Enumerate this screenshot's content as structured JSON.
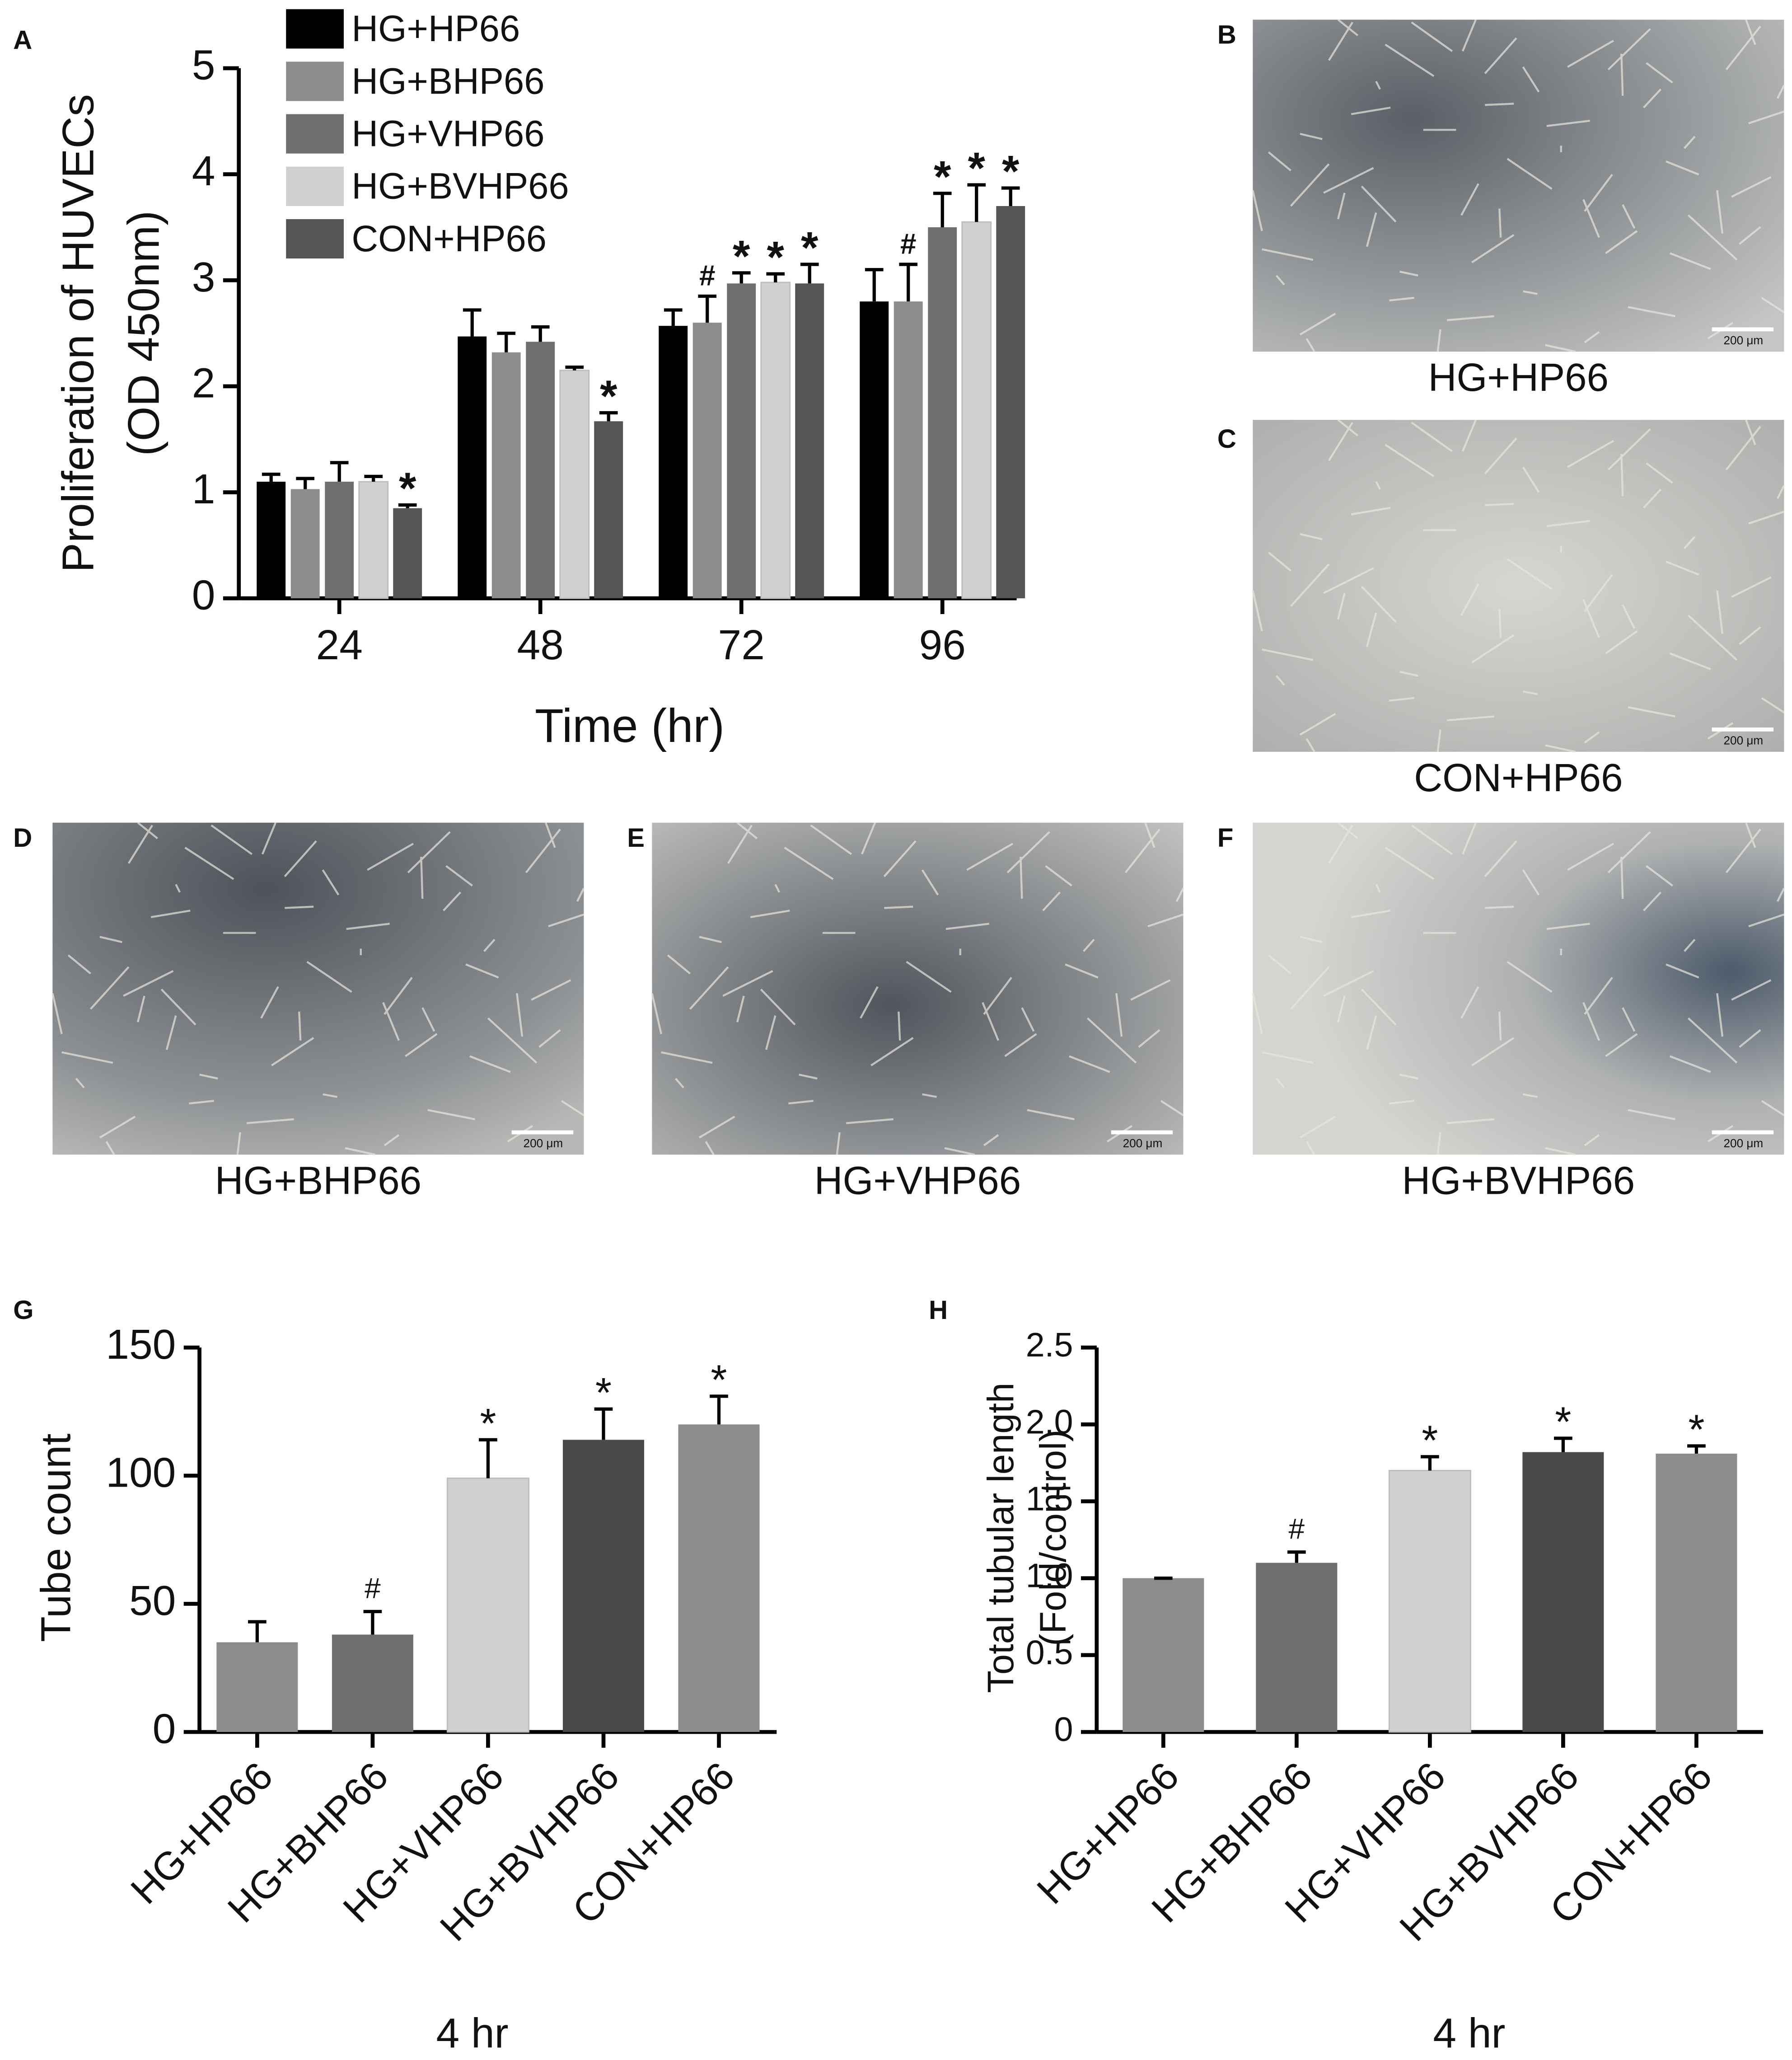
{
  "chart_data": [
    {
      "type": "bar",
      "panel": "A",
      "ylabel": [
        "Proliferation of HUVECs",
        "(OD 450nm)"
      ],
      "xlabel": "Time (hr)",
      "categories": [
        "24",
        "48",
        "72",
        "96"
      ],
      "ylim": [
        0,
        5
      ],
      "yticks": [
        0,
        1,
        2,
        3,
        4,
        5
      ],
      "series": [
        {
          "name": "HG+HP66",
          "color": "#000000",
          "values": [
            1.1,
            2.47,
            2.57,
            2.8
          ],
          "errors": [
            0.07,
            0.25,
            0.15,
            0.3
          ],
          "markers": [
            null,
            null,
            null,
            null
          ]
        },
        {
          "name": "HG+BHP66",
          "color": "#8c8c8c",
          "values": [
            1.03,
            2.32,
            2.6,
            2.8
          ],
          "errors": [
            0.1,
            0.18,
            0.25,
            0.35
          ],
          "markers": [
            null,
            null,
            "#",
            "#"
          ]
        },
        {
          "name": "HG+VHP66",
          "color": "#6e6e6e",
          "values": [
            1.1,
            2.42,
            2.97,
            3.5
          ],
          "errors": [
            0.18,
            0.14,
            0.1,
            0.32
          ],
          "markers": [
            null,
            null,
            "*",
            "*"
          ]
        },
        {
          "name": "HG+BVHP66",
          "color": "#d0d0d0",
          "values": [
            1.1,
            2.15,
            2.98,
            3.55
          ],
          "errors": [
            0.05,
            0.03,
            0.08,
            0.35
          ],
          "markers": [
            null,
            null,
            "*",
            "*"
          ]
        },
        {
          "name": "CON+HP66",
          "color": "#555555",
          "values": [
            0.85,
            1.67,
            2.97,
            3.7
          ],
          "errors": [
            0.03,
            0.08,
            0.18,
            0.17
          ],
          "markers": [
            "*",
            "*",
            "*",
            "*"
          ]
        }
      ]
    },
    {
      "type": "bar",
      "panel": "G",
      "ylabel": [
        "Tube count"
      ],
      "xlabel": "4 hr",
      "categories": [
        "HG+HP66",
        "HG+BHP66",
        "HG+VHP66",
        "HG+BVHP66",
        "CON+HP66"
      ],
      "ylim": [
        0,
        150
      ],
      "yticks": [
        0,
        50,
        100,
        150
      ],
      "values": [
        35,
        38,
        99,
        114,
        120
      ],
      "errors": [
        8,
        9,
        15,
        12,
        11
      ],
      "markers": [
        null,
        "#",
        "*",
        "*",
        "*"
      ],
      "colors": [
        "#8c8c8c",
        "#6e6e6e",
        "#d0d0d0",
        "#4a4a4a",
        "#8c8c8c"
      ]
    },
    {
      "type": "bar",
      "panel": "H",
      "ylabel": [
        "Total tubular length",
        "(Fold/control)"
      ],
      "xlabel": "4 hr",
      "categories": [
        "HG+HP66",
        "HG+BHP66",
        "HG+VHP66",
        "HG+BVHP66",
        "CON+HP66"
      ],
      "ylim": [
        0,
        2.5
      ],
      "yticks": [
        0,
        0.5,
        {
          "value": 1,
          "label": "1.0"
        },
        1.5,
        {
          "value": 2,
          "label": "2.0"
        },
        2.5
      ],
      "values": [
        1.0,
        1.1,
        1.7,
        1.82,
        1.81
      ],
      "errors": [
        0,
        0.07,
        0.09,
        0.09,
        0.05
      ],
      "markers": [
        null,
        "#",
        "*",
        "*",
        "*"
      ],
      "colors": [
        "#8c8c8c",
        "#6e6e6e",
        "#d0d0d0",
        "#4a4a4a",
        "#8c8c8c"
      ]
    }
  ],
  "images": [
    {
      "panel": "B",
      "caption": "HG+HP66",
      "scale": "200 μm"
    },
    {
      "panel": "C",
      "caption": "CON+HP66",
      "scale": "200 μm"
    },
    {
      "panel": "D",
      "caption": "HG+BHP66",
      "scale": "200 μm"
    },
    {
      "panel": "E",
      "caption": "HG+VHP66",
      "scale": "200 μm"
    },
    {
      "panel": "F",
      "caption": "HG+BVHP66",
      "scale": "200 μm"
    }
  ]
}
